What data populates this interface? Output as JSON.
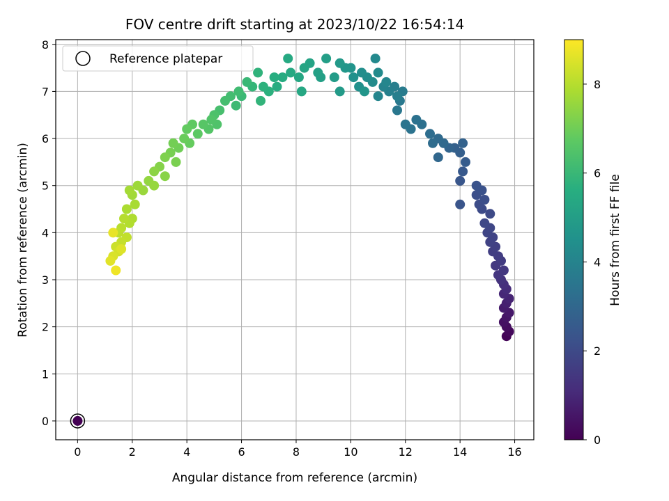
{
  "chart_data": {
    "type": "scatter",
    "title": "FOV centre drift starting at 2023/10/22 16:54:14",
    "xlabel": "Angular distance from reference (arcmin)",
    "ylabel": "Rotation from reference (arcmin)",
    "xlim": [
      -0.8,
      16.7
    ],
    "ylim": [
      -0.4,
      8.1
    ],
    "xticks": [
      "0",
      "2",
      "4",
      "6",
      "8",
      "10",
      "12",
      "14",
      "16"
    ],
    "yticks": [
      "0",
      "1",
      "2",
      "3",
      "4",
      "5",
      "6",
      "7",
      "8"
    ],
    "grid": true,
    "legend": {
      "position": "top-left",
      "entries": [
        "Reference platepar"
      ]
    },
    "colorbar": {
      "label": "Hours from first FF file",
      "range": [
        0,
        9
      ],
      "ticks": [
        "0",
        "2",
        "4",
        "6",
        "8"
      ],
      "colormap": "viridis"
    },
    "reference_point": {
      "x": 0,
      "y": 0
    },
    "series": [
      {
        "columns": [
          "x",
          "y",
          "hours"
        ],
        "points": [
          [
            0,
            0,
            0
          ],
          [
            15.7,
            1.8,
            0.1
          ],
          [
            15.8,
            1.9,
            0.2
          ],
          [
            15.7,
            2.0,
            0.3
          ],
          [
            15.6,
            2.1,
            0.4
          ],
          [
            15.7,
            2.2,
            0.5
          ],
          [
            15.8,
            2.3,
            0.6
          ],
          [
            15.6,
            2.4,
            0.7
          ],
          [
            15.7,
            2.5,
            0.8
          ],
          [
            15.8,
            2.6,
            0.9
          ],
          [
            15.6,
            2.7,
            1.0
          ],
          [
            15.7,
            2.8,
            1.1
          ],
          [
            15.6,
            2.9,
            1.2
          ],
          [
            15.5,
            3.0,
            1.3
          ],
          [
            15.4,
            3.1,
            1.4
          ],
          [
            15.6,
            3.2,
            1.45
          ],
          [
            15.3,
            3.3,
            1.5
          ],
          [
            15.5,
            3.4,
            1.55
          ],
          [
            15.4,
            3.5,
            1.6
          ],
          [
            15.2,
            3.6,
            1.65
          ],
          [
            15.3,
            3.7,
            1.7
          ],
          [
            15.1,
            3.8,
            1.75
          ],
          [
            15.2,
            3.9,
            1.8
          ],
          [
            15.0,
            4.0,
            1.85
          ],
          [
            15.1,
            4.1,
            1.9
          ],
          [
            14.9,
            4.2,
            1.95
          ],
          [
            15.1,
            4.4,
            2.0
          ],
          [
            14.8,
            4.5,
            2.05
          ],
          [
            14.7,
            4.6,
            2.1
          ],
          [
            14.9,
            4.7,
            2.15
          ],
          [
            14.6,
            4.8,
            2.2
          ],
          [
            14.8,
            4.9,
            2.25
          ],
          [
            14.6,
            5.0,
            2.3
          ],
          [
            14.0,
            4.6,
            2.35
          ],
          [
            14.0,
            5.1,
            2.4
          ],
          [
            14.1,
            5.3,
            2.5
          ],
          [
            14.2,
            5.5,
            2.6
          ],
          [
            14.0,
            5.7,
            2.7
          ],
          [
            13.8,
            5.8,
            2.75
          ],
          [
            14.1,
            5.9,
            2.8
          ],
          [
            13.6,
            5.8,
            2.9
          ],
          [
            13.2,
            5.6,
            3.0
          ],
          [
            13.4,
            5.9,
            3.05
          ],
          [
            13.2,
            6.0,
            3.1
          ],
          [
            13.0,
            5.9,
            3.15
          ],
          [
            12.9,
            6.1,
            3.2
          ],
          [
            12.6,
            6.3,
            3.3
          ],
          [
            12.4,
            6.4,
            3.35
          ],
          [
            12.2,
            6.2,
            3.4
          ],
          [
            12.0,
            6.3,
            3.45
          ],
          [
            11.7,
            6.6,
            3.55
          ],
          [
            11.8,
            6.8,
            3.6
          ],
          [
            11.9,
            7.0,
            3.7
          ],
          [
            11.6,
            7.1,
            3.8
          ],
          [
            11.7,
            6.9,
            3.85
          ],
          [
            11.4,
            7.0,
            3.9
          ],
          [
            11.2,
            7.1,
            4.0
          ],
          [
            11.0,
            6.9,
            4.05
          ],
          [
            11.3,
            7.2,
            4.1
          ],
          [
            10.9,
            7.7,
            4.2
          ],
          [
            11.0,
            7.4,
            4.25
          ],
          [
            10.8,
            7.2,
            4.3
          ],
          [
            10.6,
            7.3,
            4.35
          ],
          [
            10.4,
            7.4,
            4.4
          ],
          [
            10.3,
            7.1,
            4.45
          ],
          [
            10.1,
            7.3,
            4.5
          ],
          [
            10.0,
            7.5,
            4.6
          ],
          [
            10.5,
            7.0,
            4.65
          ],
          [
            9.8,
            7.5,
            4.7
          ],
          [
            9.6,
            7.6,
            4.8
          ],
          [
            9.6,
            7.0,
            4.85
          ],
          [
            9.4,
            7.3,
            4.9
          ],
          [
            9.1,
            7.7,
            5.0
          ],
          [
            8.9,
            7.3,
            5.05
          ],
          [
            8.8,
            7.4,
            5.1
          ],
          [
            8.5,
            7.6,
            5.2
          ],
          [
            8.3,
            7.5,
            5.25
          ],
          [
            8.1,
            7.3,
            5.3
          ],
          [
            8.2,
            7.0,
            5.35
          ],
          [
            7.8,
            7.4,
            5.4
          ],
          [
            7.7,
            7.7,
            5.45
          ],
          [
            7.5,
            7.3,
            5.5
          ],
          [
            7.3,
            7.1,
            5.55
          ],
          [
            7.2,
            7.3,
            5.6
          ],
          [
            7.0,
            7.0,
            5.7
          ],
          [
            6.8,
            7.1,
            5.75
          ],
          [
            6.6,
            7.4,
            5.8
          ],
          [
            6.7,
            6.8,
            5.85
          ],
          [
            6.4,
            7.1,
            5.9
          ],
          [
            6.2,
            7.2,
            6.0
          ],
          [
            6.0,
            6.9,
            6.05
          ],
          [
            5.8,
            6.7,
            6.1
          ],
          [
            5.9,
            7.0,
            6.15
          ],
          [
            5.6,
            6.9,
            6.2
          ],
          [
            5.4,
            6.8,
            6.25
          ],
          [
            5.2,
            6.6,
            6.3
          ],
          [
            5.0,
            6.5,
            6.4
          ],
          [
            5.1,
            6.3,
            6.45
          ],
          [
            4.9,
            6.4,
            6.5
          ],
          [
            4.8,
            6.2,
            6.55
          ],
          [
            4.6,
            6.3,
            6.6
          ],
          [
            4.4,
            6.1,
            6.7
          ],
          [
            4.2,
            6.3,
            6.75
          ],
          [
            4.0,
            6.2,
            6.8
          ],
          [
            4.1,
            5.9,
            6.85
          ],
          [
            3.9,
            6.0,
            6.9
          ],
          [
            3.7,
            5.8,
            7.0
          ],
          [
            3.5,
            5.9,
            7.05
          ],
          [
            3.4,
            5.7,
            7.1
          ],
          [
            3.6,
            5.5,
            7.15
          ],
          [
            3.2,
            5.6,
            7.2
          ],
          [
            3.0,
            5.4,
            7.3
          ],
          [
            3.2,
            5.2,
            7.35
          ],
          [
            2.8,
            5.3,
            7.4
          ],
          [
            2.6,
            5.1,
            7.5
          ],
          [
            2.8,
            5.0,
            7.55
          ],
          [
            2.4,
            4.9,
            7.6
          ],
          [
            2.2,
            5.0,
            7.65
          ],
          [
            2.0,
            4.8,
            7.7
          ],
          [
            1.9,
            4.9,
            7.75
          ],
          [
            2.1,
            4.6,
            7.8
          ],
          [
            1.8,
            4.5,
            7.85
          ],
          [
            2.0,
            4.3,
            7.9
          ],
          [
            1.9,
            4.2,
            7.95
          ],
          [
            1.7,
            4.3,
            8.0
          ],
          [
            1.6,
            4.1,
            8.05
          ],
          [
            1.5,
            4.0,
            8.1
          ],
          [
            1.8,
            3.9,
            8.15
          ],
          [
            1.6,
            3.8,
            8.2
          ],
          [
            1.4,
            3.7,
            8.3
          ],
          [
            1.5,
            3.6,
            8.4
          ],
          [
            1.3,
            3.5,
            8.5
          ],
          [
            1.2,
            3.4,
            8.6
          ],
          [
            1.4,
            3.2,
            8.8
          ],
          [
            1.3,
            4.0,
            8.7
          ],
          [
            1.6,
            3.65,
            8.55
          ]
        ]
      }
    ]
  }
}
